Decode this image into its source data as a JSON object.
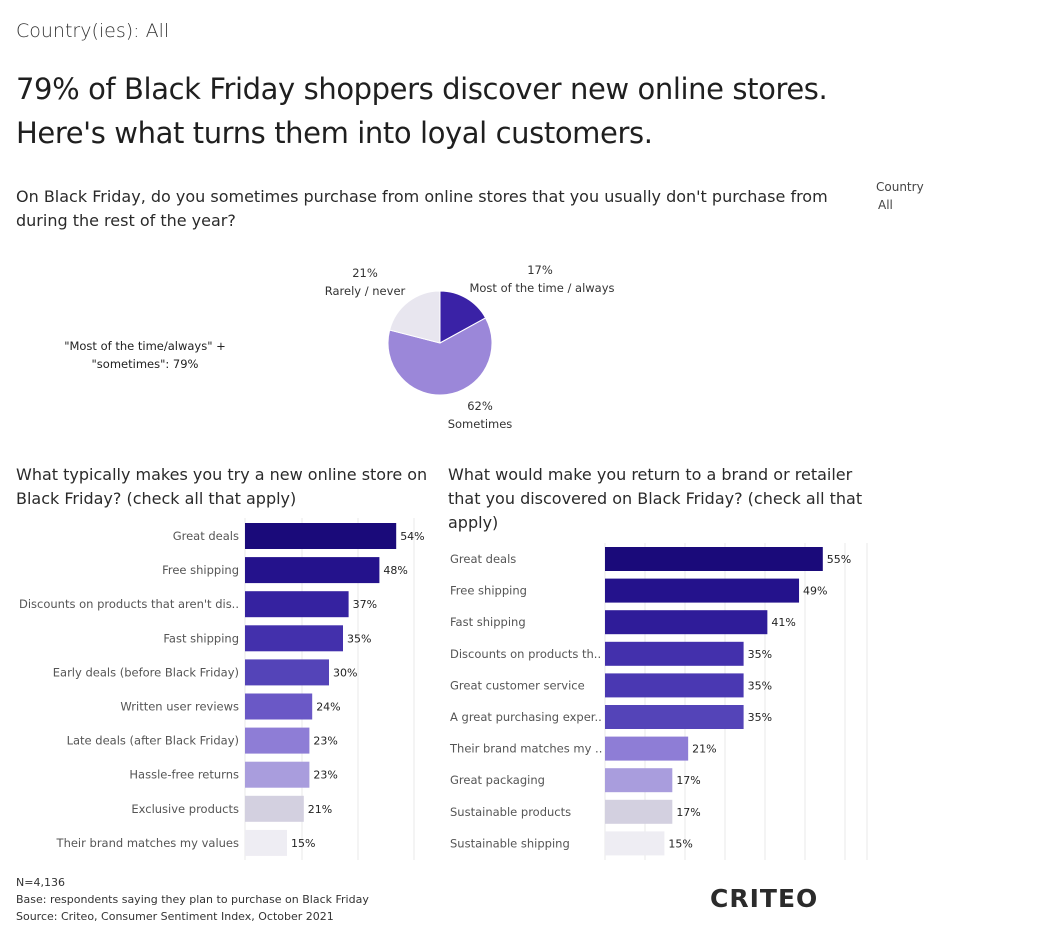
{
  "country_filter": "Country(ies): All",
  "headline": {
    "line1": "79% of Black Friday shoppers discover new online stores.",
    "line2": "Here's what turns them into loyal customers."
  },
  "country_selector": {
    "label": "Country",
    "value": "All"
  },
  "footer": {
    "n": "N=4,136",
    "base": "Base: respondents saying they plan to purchase on Black Friday",
    "source": "Source: Criteo, Consumer Sentiment Index, October 2021"
  },
  "logo_text": "CRITEO",
  "chart_data": [
    {
      "type": "pie",
      "title": "On Black Friday, do you sometimes purchase from online stores that you usually don't purchase from during the rest of the year?",
      "annotation": "\"Most of the time/always\" + \"sometimes\": 79%",
      "slices": [
        {
          "label": "Most of the time / always",
          "value": 17,
          "value_label": "17%",
          "color": "#3a22a6"
        },
        {
          "label": "Sometimes",
          "value": 62,
          "value_label": "62%",
          "color": "#9b87d9"
        },
        {
          "label": "Rarely / never",
          "value": 21,
          "value_label": "21%",
          "color": "#e8e6ef"
        }
      ]
    },
    {
      "type": "bar",
      "orientation": "horizontal",
      "title": "What typically makes you try a new online store on Black Friday? (check all that apply)",
      "categories": [
        "Great deals",
        "Free shipping",
        "Discounts on products that aren't dis..",
        "Fast shipping",
        "Early deals (before Black Friday)",
        "Written user reviews",
        "Late deals (after Black Friday)",
        "Hassle-free returns",
        "Exclusive products",
        "Their brand matches my values"
      ],
      "values": [
        54,
        48,
        37,
        35,
        30,
        24,
        23,
        23,
        21,
        15
      ],
      "value_labels": [
        "54%",
        "48%",
        "37%",
        "35%",
        "30%",
        "24%",
        "23%",
        "23%",
        "21%",
        "15%"
      ],
      "colors": [
        "#1a0a7a",
        "#24128c",
        "#3522a0",
        "#4330ac",
        "#5444b8",
        "#6a58c6",
        "#8e7dd6",
        "#a99ddd",
        "#d3d0e0",
        "#eeedf3"
      ],
      "xlim": [
        0,
        60
      ]
    },
    {
      "type": "bar",
      "orientation": "horizontal",
      "title": "What would make you return to a brand or retailer that you discovered on Black Friday? (check all that apply)",
      "categories": [
        "Great deals",
        "Free shipping",
        "Fast shipping",
        "Discounts on products th..",
        "Great customer service",
        "A great purchasing exper..",
        "Their brand matches my ..",
        "Great packaging",
        "Sustainable products",
        "Sustainable shipping"
      ],
      "values": [
        55,
        49,
        41,
        35,
        35,
        35,
        21,
        17,
        17,
        15
      ],
      "value_labels": [
        "55%",
        "49%",
        "41%",
        "35%",
        "35%",
        "35%",
        "21%",
        "17%",
        "17%",
        "15%"
      ],
      "colors": [
        "#1a0a7a",
        "#24128c",
        "#2f1c99",
        "#4330ac",
        "#4a38b2",
        "#5444b8",
        "#8e7dd6",
        "#a99ddd",
        "#d3d0e0",
        "#eeedf3"
      ],
      "xlim": [
        0,
        65
      ]
    }
  ]
}
